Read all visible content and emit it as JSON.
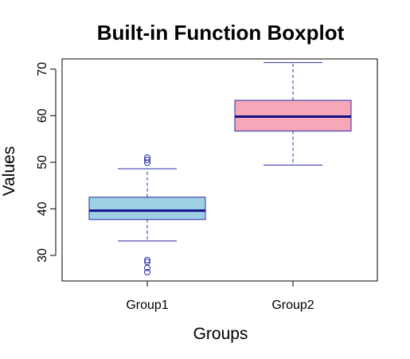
{
  "chart_data": {
    "type": "boxplot",
    "title": "Built-in Function Boxplot",
    "xlabel": "Groups",
    "ylabel": "Values",
    "categories": [
      "Group1",
      "Group2"
    ],
    "ylim": [
      24.5,
      72.2
    ],
    "yticks": [
      30,
      40,
      50,
      60,
      70
    ],
    "ytick_labels": [
      "30",
      "40",
      "50",
      "60",
      "70"
    ],
    "boxes": [
      {
        "name": "Group1",
        "whisker_low": 33.1,
        "q1": 37.7,
        "median": 39.6,
        "q3": 42.5,
        "whisker_high": 48.6,
        "outliers": [
          51.0,
          50.5,
          49.9,
          29.0,
          28.6,
          27.3,
          26.4
        ],
        "fill": "#9ecfe3"
      },
      {
        "name": "Group2",
        "whisker_low": 49.4,
        "q1": 56.7,
        "median": 59.8,
        "q3": 63.3,
        "whisker_high": 71.4,
        "outliers": [],
        "fill": "#f6a7b8"
      }
    ],
    "colors": {
      "border": "#2b2ba8",
      "median": "#10108a",
      "axis": "#000000"
    }
  }
}
